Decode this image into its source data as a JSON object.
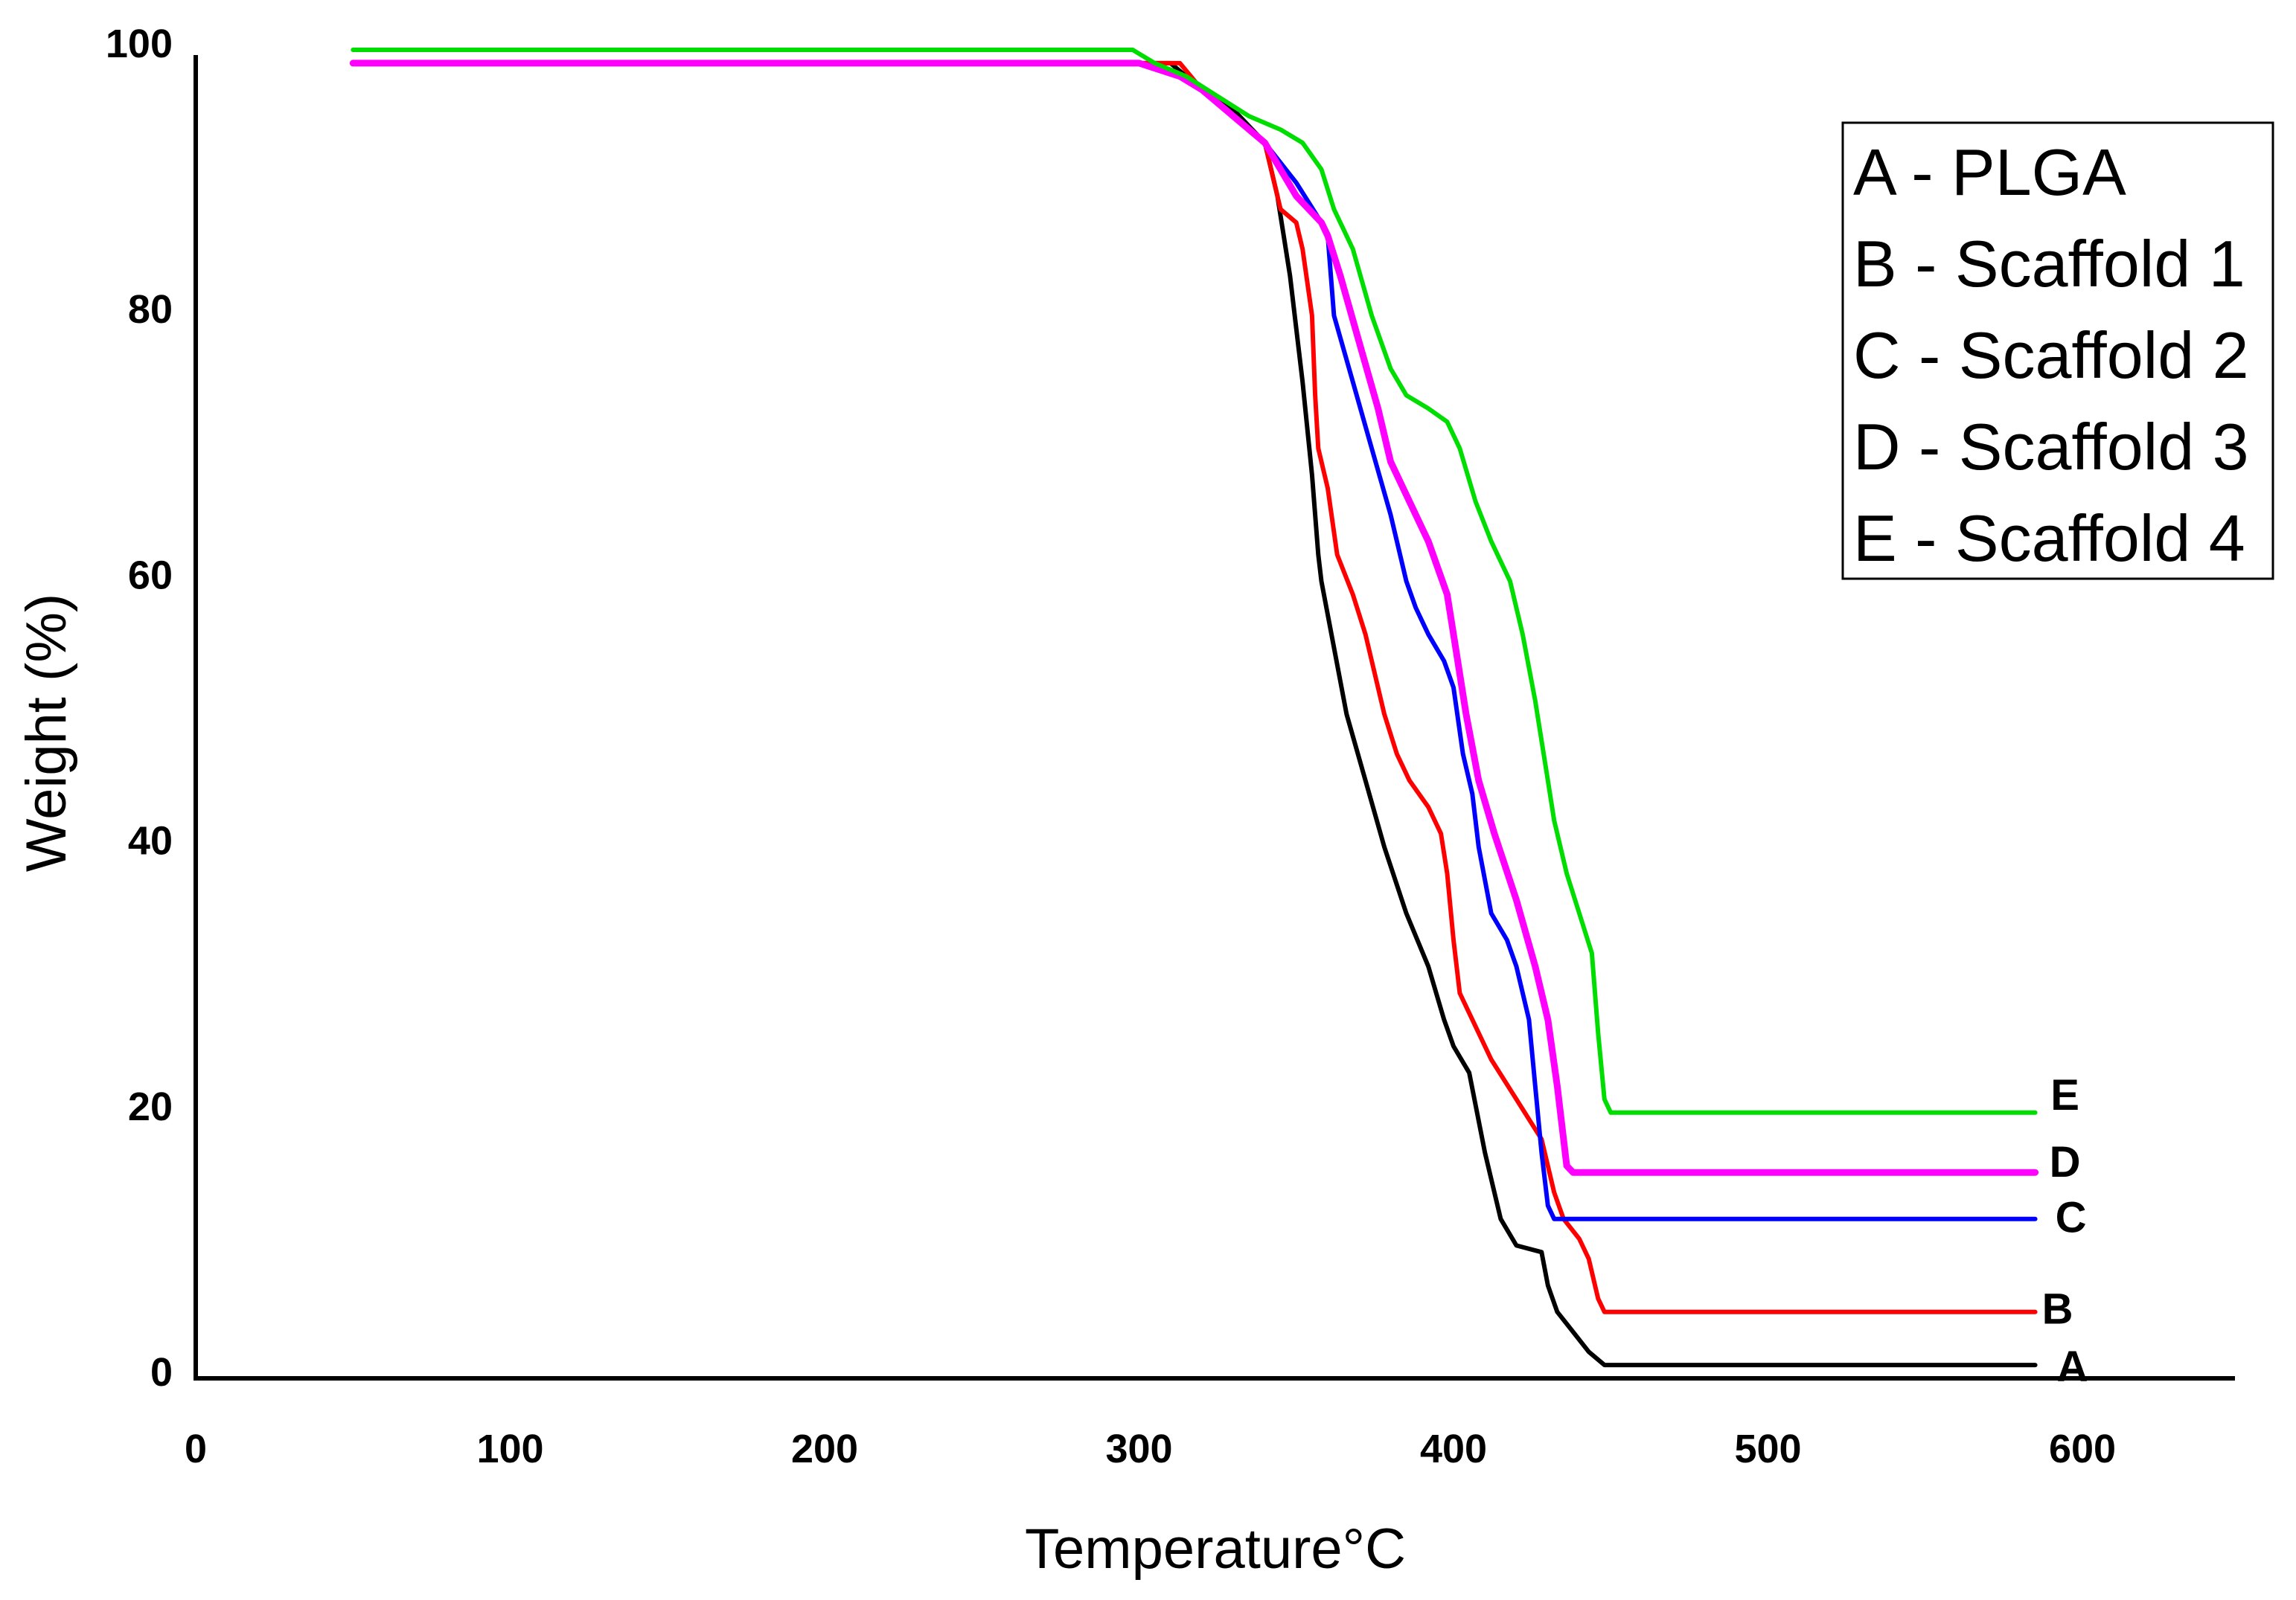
{
  "chart_data": {
    "type": "line",
    "title": "",
    "xlabel": "Temperature°C",
    "ylabel": "Weight (%)",
    "xlim": [
      0,
      650
    ],
    "ylim": [
      0,
      100
    ],
    "x_ticks": [
      0,
      100,
      200,
      300,
      400,
      500,
      600
    ],
    "y_ticks": [
      0,
      20,
      40,
      60,
      80,
      100
    ],
    "grid": false,
    "legend_position": "top-right",
    "series": [
      {
        "name": "A - PLGA",
        "end_label": "A",
        "color": "#000000",
        "points": [
          [
            50,
            99
          ],
          [
            300,
            99
          ],
          [
            310,
            99
          ],
          [
            320,
            97
          ],
          [
            330,
            95.5
          ],
          [
            340,
            93
          ],
          [
            344,
            89
          ],
          [
            348,
            83
          ],
          [
            352,
            75
          ],
          [
            355,
            68
          ],
          [
            357,
            62
          ],
          [
            358,
            60
          ],
          [
            362,
            55
          ],
          [
            366,
            50
          ],
          [
            372,
            45
          ],
          [
            378,
            40
          ],
          [
            385,
            35
          ],
          [
            392,
            31
          ],
          [
            397,
            27
          ],
          [
            400,
            25
          ],
          [
            405,
            23
          ],
          [
            410,
            17
          ],
          [
            415,
            12
          ],
          [
            420,
            10
          ],
          [
            428,
            9.5
          ],
          [
            430,
            7
          ],
          [
            433,
            5
          ],
          [
            438,
            3.5
          ],
          [
            443,
            2
          ],
          [
            448,
            1
          ],
          [
            450,
            1
          ],
          [
            585,
            1
          ]
        ]
      },
      {
        "name": "B - Scaffold 1",
        "end_label": "B",
        "color": "#ff0000",
        "points": [
          [
            50,
            99
          ],
          [
            300,
            99
          ],
          [
            313,
            99
          ],
          [
            320,
            97
          ],
          [
            330,
            95
          ],
          [
            340,
            93
          ],
          [
            345,
            88
          ],
          [
            350,
            87
          ],
          [
            352,
            85
          ],
          [
            355,
            80
          ],
          [
            356,
            74
          ],
          [
            357,
            70
          ],
          [
            360,
            67
          ],
          [
            363,
            62
          ],
          [
            368,
            59
          ],
          [
            372,
            56
          ],
          [
            378,
            50
          ],
          [
            382,
            47
          ],
          [
            386,
            45
          ],
          [
            392,
            43
          ],
          [
            396,
            41
          ],
          [
            398,
            38
          ],
          [
            400,
            33
          ],
          [
            402,
            29
          ],
          [
            406,
            27
          ],
          [
            412,
            24
          ],
          [
            420,
            21
          ],
          [
            428,
            18
          ],
          [
            432,
            14
          ],
          [
            435,
            12
          ],
          [
            440,
            10.5
          ],
          [
            443,
            9
          ],
          [
            446,
            6
          ],
          [
            448,
            5
          ],
          [
            585,
            5
          ]
        ]
      },
      {
        "name": "C - Scaffold 2",
        "end_label": "C",
        "color": "#0000ff",
        "points": [
          [
            50,
            99
          ],
          [
            300,
            99
          ],
          [
            313,
            98
          ],
          [
            320,
            97
          ],
          [
            330,
            95
          ],
          [
            340,
            93
          ],
          [
            350,
            90
          ],
          [
            358,
            87
          ],
          [
            360,
            86
          ],
          [
            362,
            80
          ],
          [
            368,
            75
          ],
          [
            374,
            70
          ],
          [
            380,
            65
          ],
          [
            385,
            60
          ],
          [
            388,
            58
          ],
          [
            392,
            56
          ],
          [
            397,
            54
          ],
          [
            400,
            52
          ],
          [
            403,
            47
          ],
          [
            406,
            44
          ],
          [
            408,
            40
          ],
          [
            412,
            35
          ],
          [
            417,
            33
          ],
          [
            420,
            31
          ],
          [
            424,
            27
          ],
          [
            426,
            22
          ],
          [
            428,
            17
          ],
          [
            430,
            13
          ],
          [
            432,
            12
          ],
          [
            585,
            12
          ]
        ]
      },
      {
        "name": "D - Scaffold 3",
        "end_label": "D",
        "color": "#ff00ff",
        "points": [
          [
            50,
            99
          ],
          [
            300,
            99
          ],
          [
            313,
            98
          ],
          [
            320,
            97
          ],
          [
            330,
            95
          ],
          [
            340,
            93
          ],
          [
            350,
            89
          ],
          [
            358,
            87
          ],
          [
            360,
            86
          ],
          [
            364,
            83
          ],
          [
            370,
            78
          ],
          [
            376,
            73
          ],
          [
            380,
            69
          ],
          [
            386,
            66
          ],
          [
            392,
            63
          ],
          [
            398,
            59
          ],
          [
            400,
            56
          ],
          [
            404,
            50
          ],
          [
            408,
            45
          ],
          [
            413,
            41
          ],
          [
            420,
            36
          ],
          [
            426,
            31
          ],
          [
            430,
            27
          ],
          [
            433,
            22
          ],
          [
            436,
            16
          ],
          [
            438,
            15.5
          ],
          [
            585,
            15.5
          ]
        ]
      },
      {
        "name": "E - Scaffold 4",
        "end_label": "E",
        "color": "#00dd00",
        "points": [
          [
            50,
            100
          ],
          [
            298,
            100
          ],
          [
            305,
            99
          ],
          [
            315,
            98
          ],
          [
            325,
            96.5
          ],
          [
            335,
            95
          ],
          [
            345,
            94
          ],
          [
            352,
            93
          ],
          [
            358,
            91
          ],
          [
            362,
            88
          ],
          [
            368,
            85
          ],
          [
            374,
            80
          ],
          [
            380,
            76
          ],
          [
            385,
            74
          ],
          [
            392,
            73
          ],
          [
            398,
            72
          ],
          [
            402,
            70
          ],
          [
            407,
            66
          ],
          [
            412,
            63
          ],
          [
            418,
            60
          ],
          [
            422,
            56
          ],
          [
            426,
            51
          ],
          [
            430,
            45
          ],
          [
            432,
            42
          ],
          [
            436,
            38
          ],
          [
            440,
            35
          ],
          [
            444,
            32
          ],
          [
            446,
            26
          ],
          [
            448,
            21
          ],
          [
            450,
            20
          ],
          [
            585,
            20
          ]
        ]
      }
    ]
  }
}
